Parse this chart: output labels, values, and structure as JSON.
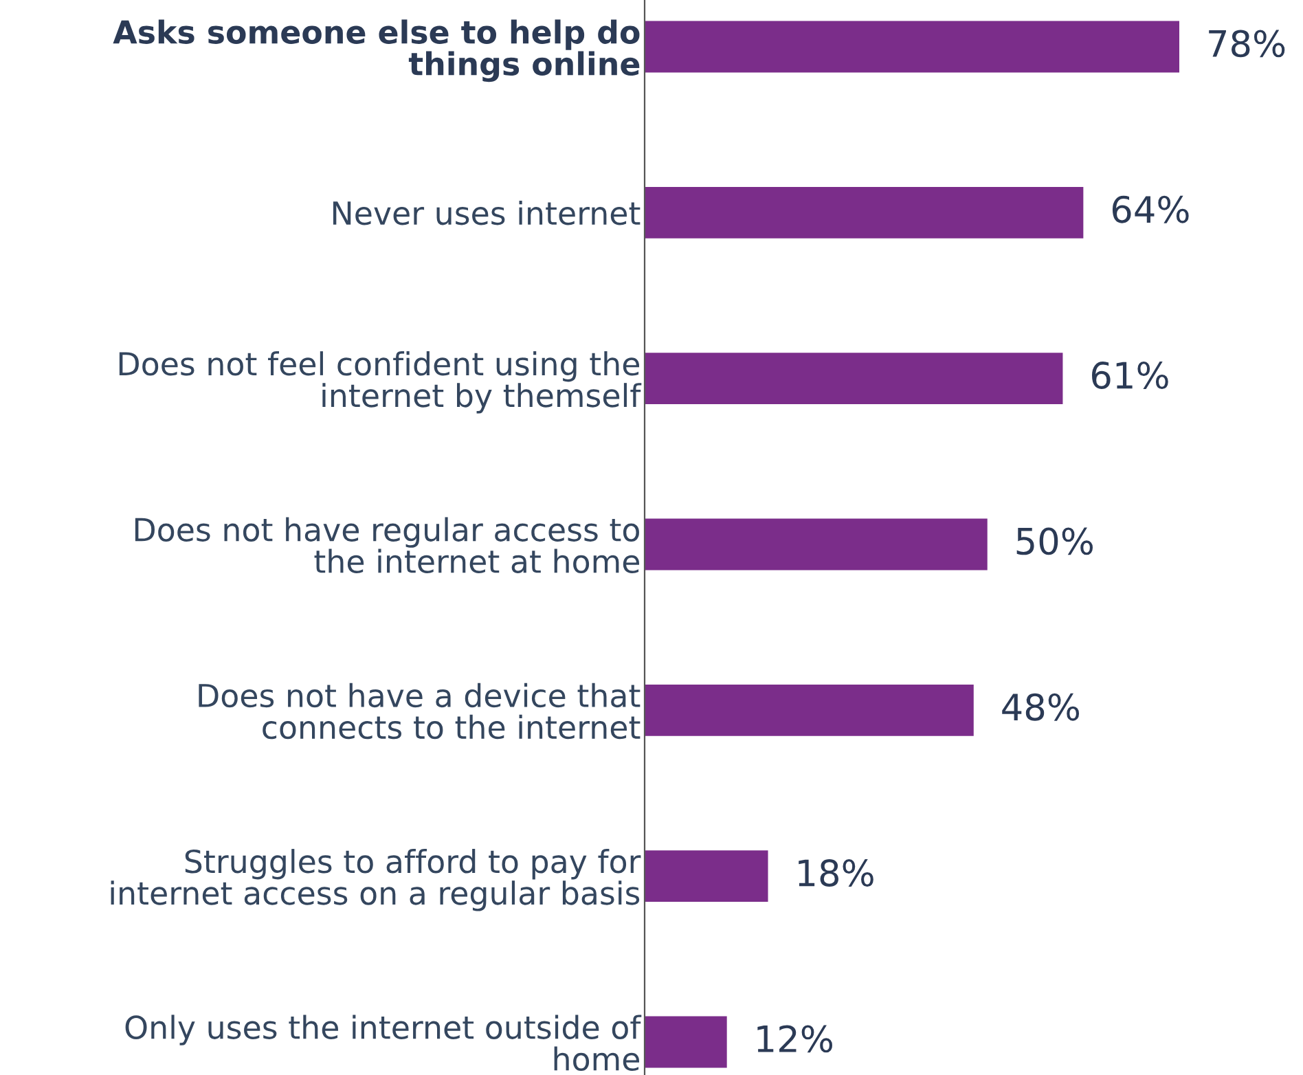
{
  "chart_data": {
    "type": "bar",
    "orientation": "horizontal",
    "categories": [
      "Asks someone else to help do\nthings online",
      "Never uses internet",
      "Does not feel confident using the\ninternet by themself",
      "Does not have regular access to\nthe internet at home",
      "Does not have a device that\nconnects to the internet",
      "Struggles to afford to pay for\ninternet access on a regular basis",
      "Only uses the internet outside of\nhome"
    ],
    "values": [
      78,
      64,
      61,
      50,
      48,
      18,
      12
    ],
    "value_labels": [
      "78%",
      "64%",
      "61%",
      "50%",
      "48%",
      "18%",
      "12%"
    ],
    "color": "#7b2d8a",
    "grid": false,
    "legend": false
  }
}
